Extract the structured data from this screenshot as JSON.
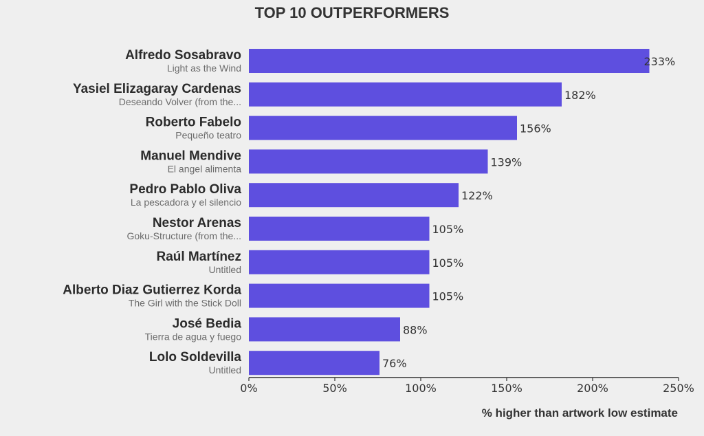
{
  "chart_data": {
    "type": "bar",
    "orientation": "horizontal",
    "title": "TOP 10 OUTPERFORMERS",
    "xlabel": "% higher than artwork low estimate",
    "ylabel": "",
    "xlim": [
      0,
      250
    ],
    "x_ticks": [
      0,
      50,
      100,
      150,
      200,
      250
    ],
    "x_tick_labels": [
      "0%",
      "50%",
      "100%",
      "150%",
      "200%",
      "250%"
    ],
    "grid": false,
    "bar_color": "#5e4fdf",
    "categories": [
      {
        "artist": "Alfredo Sosabravo",
        "artwork": "Light as the Wind"
      },
      {
        "artist": "Yasiel Elizagaray Cardenas",
        "artwork": "Deseando Volver (from the..."
      },
      {
        "artist": "Roberto Fabelo",
        "artwork": "Pequeño teatro"
      },
      {
        "artist": "Manuel Mendive",
        "artwork": "El angel alimenta"
      },
      {
        "artist": "Pedro Pablo Oliva",
        "artwork": "La pescadora y el silencio"
      },
      {
        "artist": "Nestor Arenas",
        "artwork": "Goku-Structure (from the..."
      },
      {
        "artist": "Raúl Martínez",
        "artwork": "Untitled"
      },
      {
        "artist": "Alberto Diaz Gutierrez Korda",
        "artwork": "The Girl with the Stick Doll"
      },
      {
        "artist": "José Bedia",
        "artwork": "Tierra de agua y fuego"
      },
      {
        "artist": "Lolo Soldevilla",
        "artwork": "Untitled"
      }
    ],
    "values": [
      233,
      182,
      156,
      139,
      122,
      105,
      105,
      105,
      88,
      76
    ],
    "value_labels": [
      "233%",
      "182%",
      "156%",
      "139%",
      "122%",
      "105%",
      "105%",
      "105%",
      "88%",
      "76%"
    ]
  }
}
